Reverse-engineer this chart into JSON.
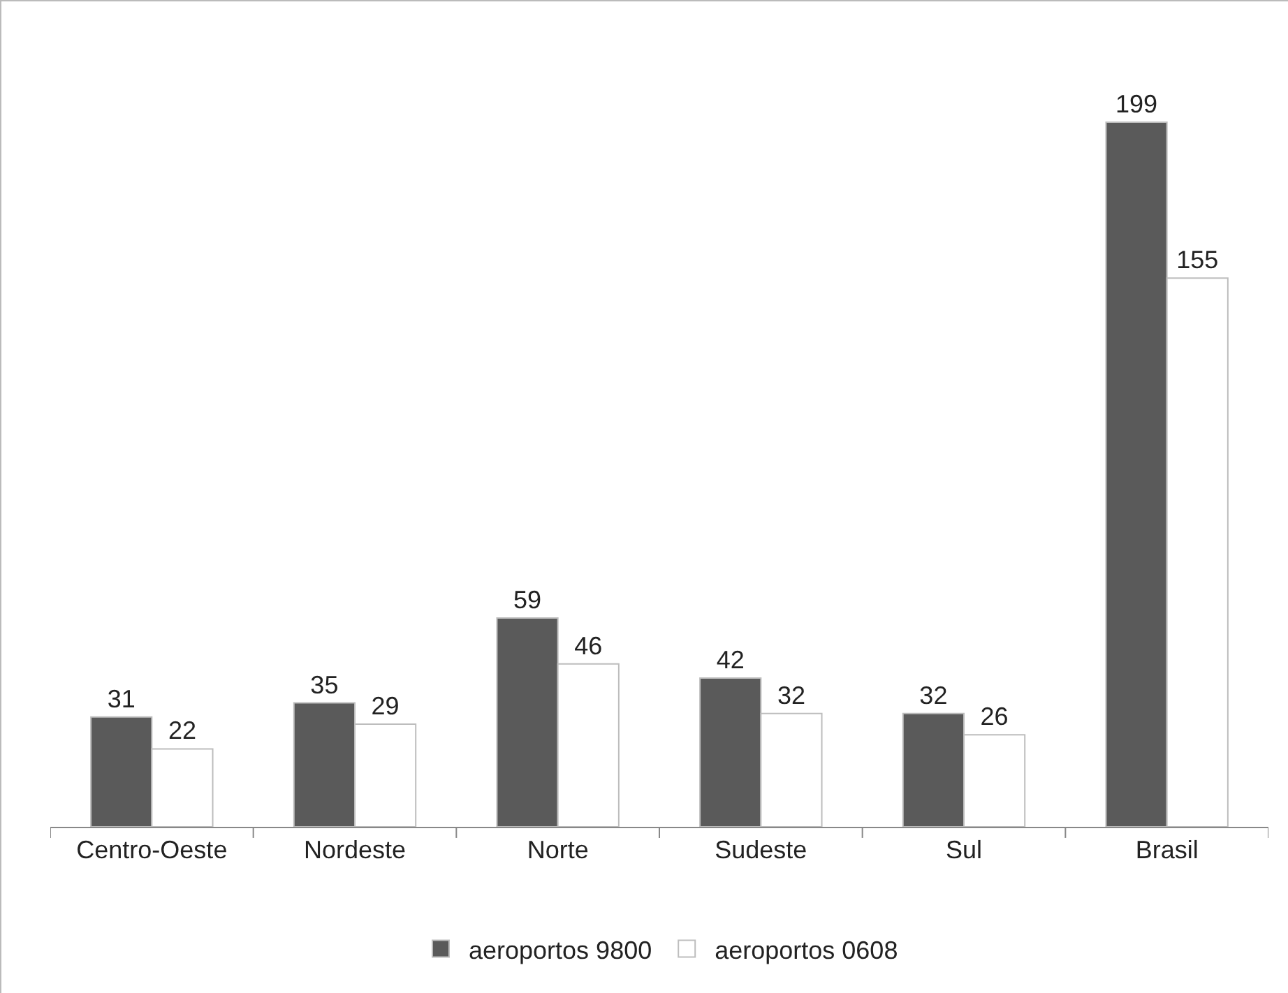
{
  "chart_data": {
    "type": "bar",
    "categories": [
      "Centro-Oeste",
      "Nordeste",
      "Norte",
      "Sudeste",
      "Sul",
      "Brasil"
    ],
    "series": [
      {
        "name": "aeroportos 9800",
        "color": "#5a5a5a",
        "values": [
          31,
          35,
          59,
          42,
          32,
          199
        ]
      },
      {
        "name": "aeroportos 0608",
        "color": "#ffffff",
        "values": [
          22,
          29,
          46,
          32,
          26,
          155
        ]
      }
    ],
    "data_labels": true,
    "legend": "bottom"
  }
}
